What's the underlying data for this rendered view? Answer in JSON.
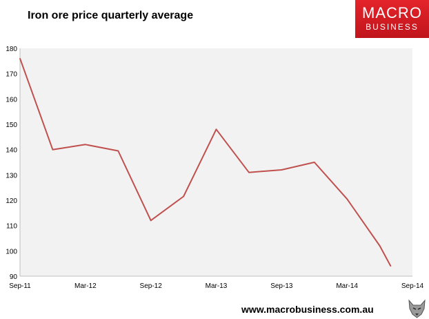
{
  "header": {
    "title": "Iron ore price quarterly average"
  },
  "brand": {
    "line1": "MACRO",
    "line2": "BUSINESS",
    "url": "www.macrobusiness.com.au",
    "logo_color": "#d41f26"
  },
  "icons": {
    "footer_mascot": "wolf-icon"
  },
  "chart_data": {
    "type": "line",
    "title": "Iron ore price quarterly average",
    "xlabel": "",
    "ylabel": "",
    "x": [
      "Sep-11",
      "Dec-11",
      "Mar-12",
      "Jun-12",
      "Sep-12",
      "Dec-12",
      "Mar-13",
      "Jun-13",
      "Sep-13",
      "Dec-13",
      "Mar-14",
      "Jun-14",
      "Jul-14"
    ],
    "x_tick_labels": [
      "Sep-11",
      "Mar-12",
      "Sep-12",
      "Mar-13",
      "Sep-13",
      "Mar-14",
      "Sep-14"
    ],
    "series": [
      {
        "color": "#c0504d",
        "values": [
          176,
          140,
          142,
          139.5,
          112,
          121.5,
          148,
          131,
          132,
          135,
          120.5,
          102,
          94
        ]
      }
    ],
    "ylim": [
      90,
      180
    ],
    "yticks": [
      90,
      100,
      110,
      120,
      130,
      140,
      150,
      160,
      170,
      180
    ],
    "grid": false,
    "legend": "none",
    "plot_background": "#f2f2f2"
  }
}
